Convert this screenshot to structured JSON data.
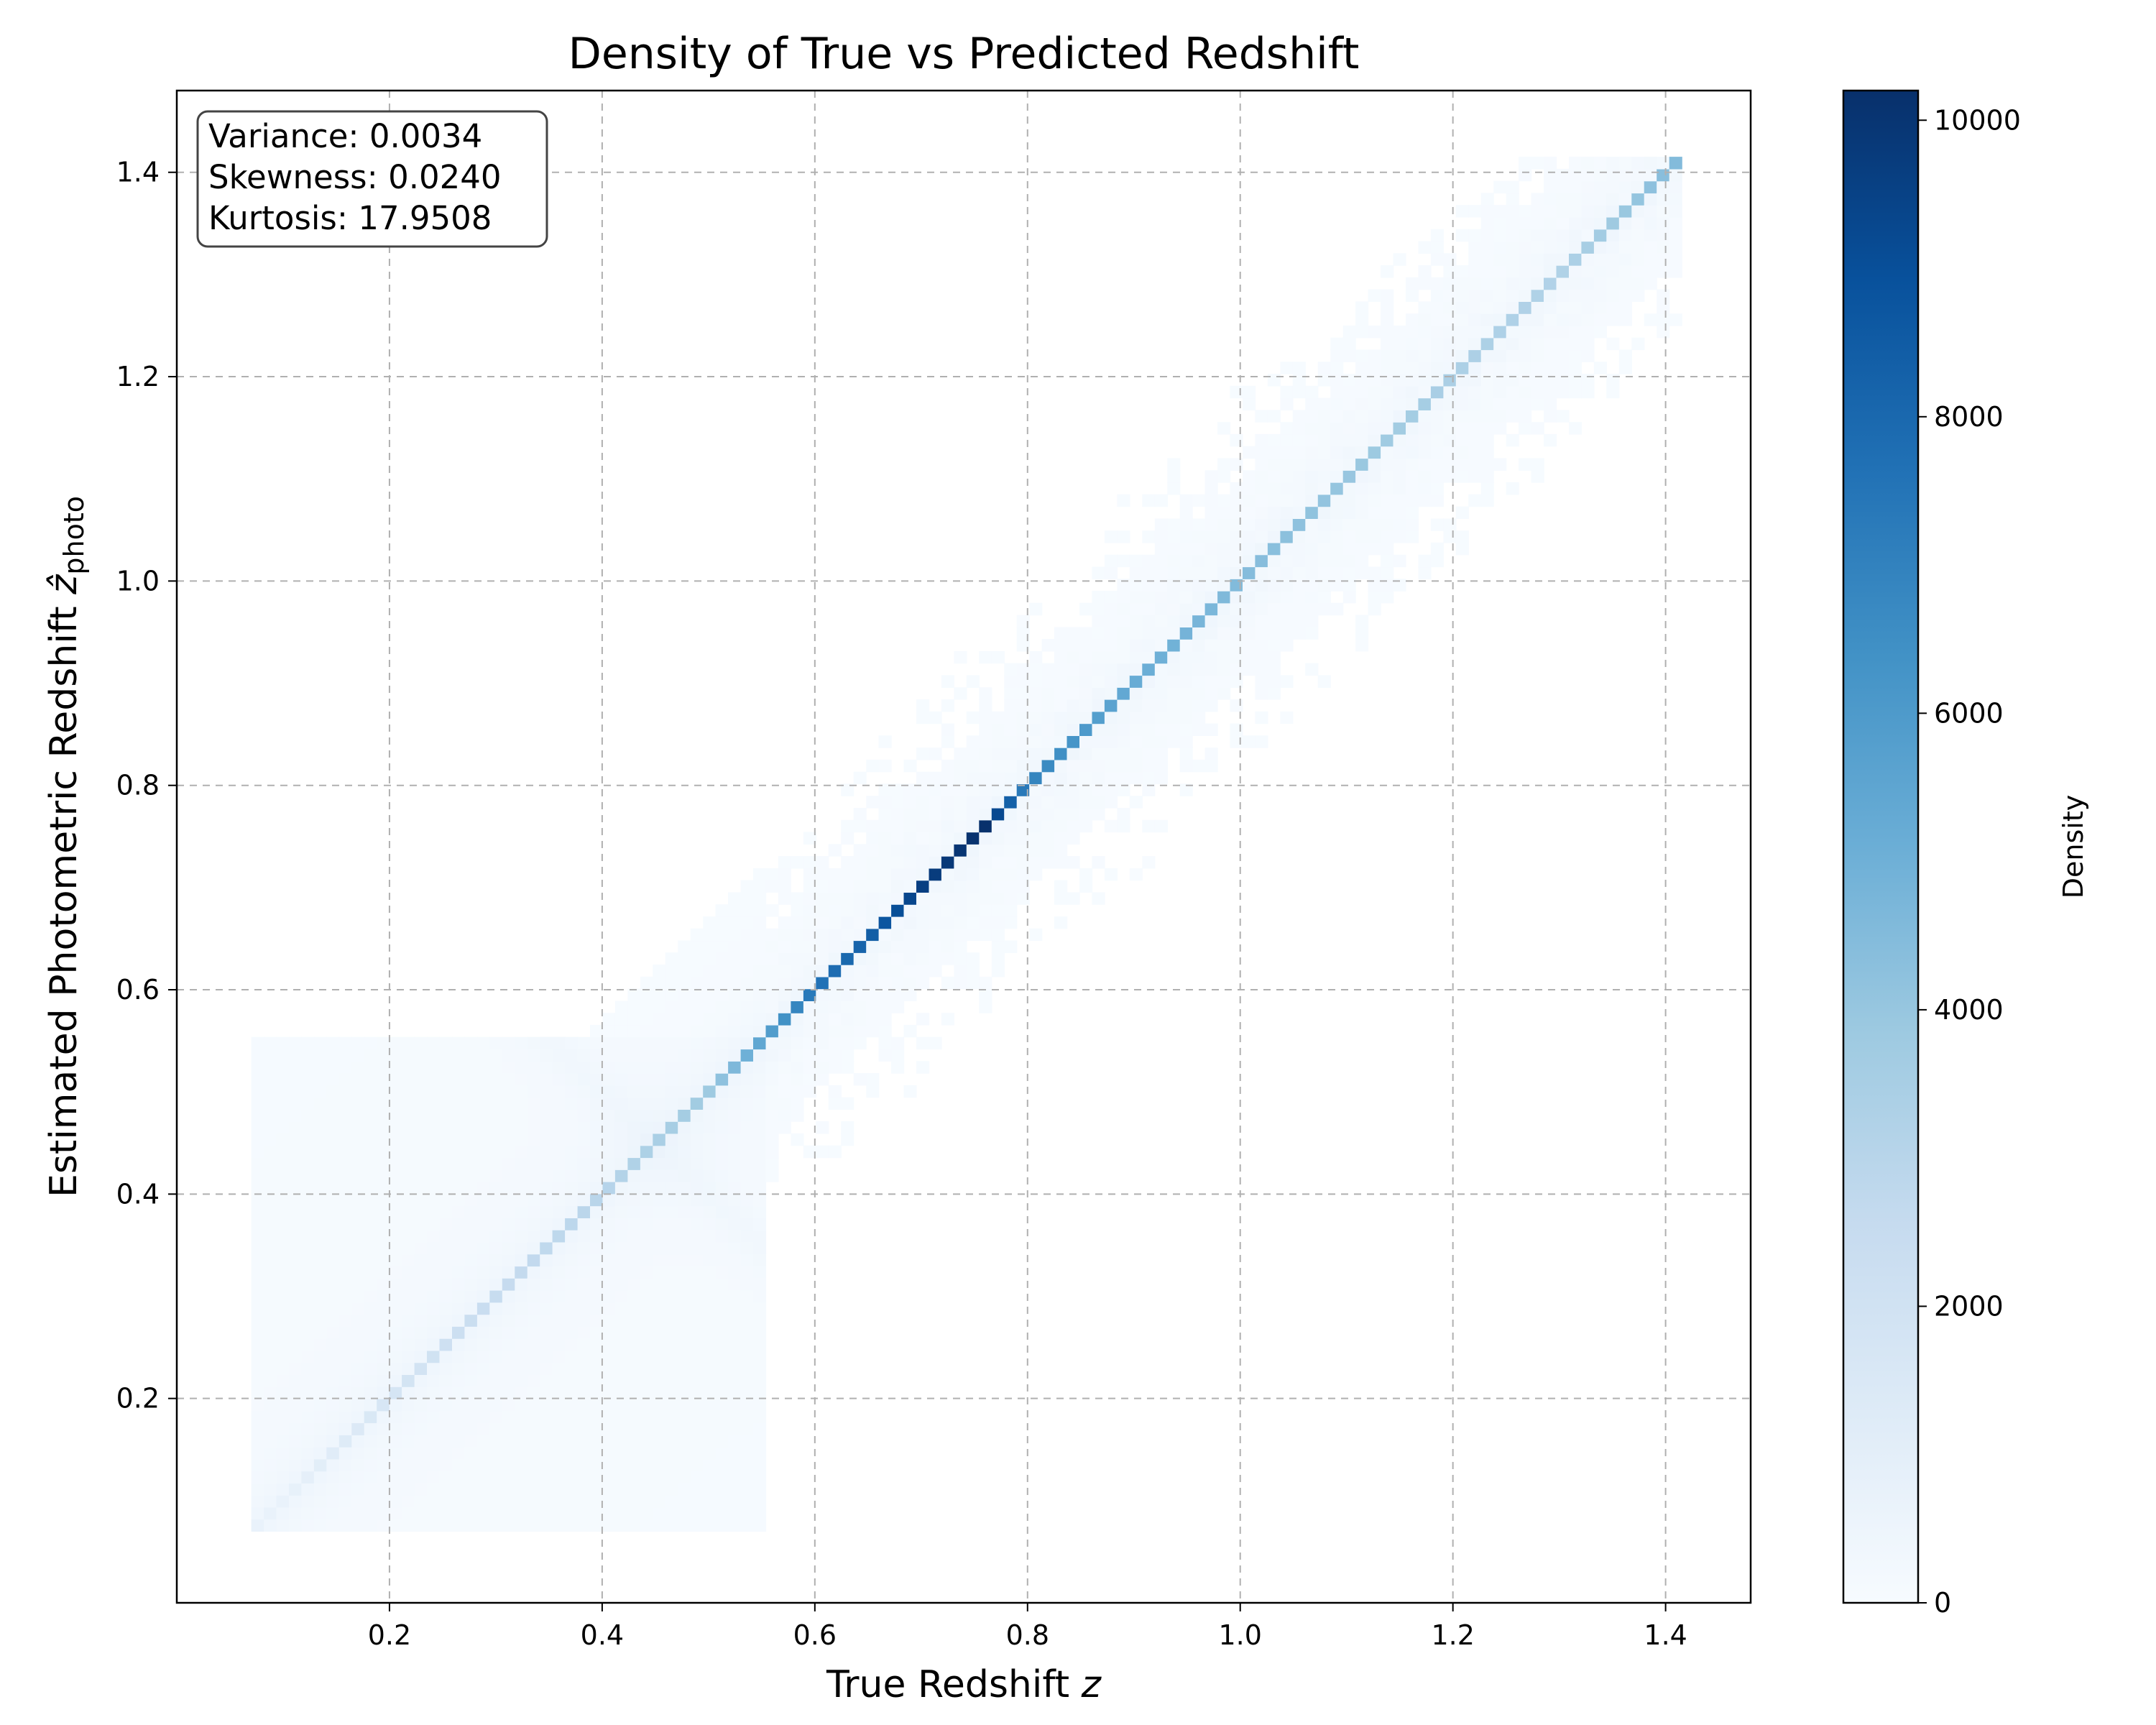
{
  "chart_data": {
    "type": "heatmap",
    "title": "Density of True vs Predicted Redshift",
    "xlabel": {
      "main": "True Redshift ",
      "var": "z"
    },
    "ylabel": {
      "main": "Estimated Photometric Redshift ",
      "var": "ẑ",
      "sub": "photo"
    },
    "xlim": [
      0.0,
      1.48
    ],
    "ylim": [
      0.0,
      1.48
    ],
    "xticks": [
      0.2,
      0.4,
      0.6,
      0.8,
      1.0,
      1.2,
      1.4
    ],
    "yticks": [
      0.2,
      0.4,
      0.6,
      0.8,
      1.0,
      1.2,
      1.4
    ],
    "grid": true,
    "colormap": "Blues",
    "colorbar": {
      "label": "Density",
      "range": [
        0,
        10200
      ],
      "ticks": [
        0,
        2000,
        4000,
        6000,
        8000,
        10000
      ]
    },
    "stats_box": {
      "placement": "top-left",
      "lines": [
        "Variance: 0.0034",
        "Skewness: 0.0240",
        "Kurtosis: 17.9508"
      ]
    },
    "data_range": {
      "x": [
        0.07,
        1.42
      ],
      "y": [
        0.07,
        1.42
      ]
    },
    "diagonal_density": [
      {
        "z": 0.1,
        "density": 700
      },
      {
        "z": 0.2,
        "density": 1700
      },
      {
        "z": 0.3,
        "density": 2500
      },
      {
        "z": 0.4,
        "density": 3000
      },
      {
        "z": 0.5,
        "density": 3800
      },
      {
        "z": 0.55,
        "density": 5500
      },
      {
        "z": 0.6,
        "density": 7500
      },
      {
        "z": 0.65,
        "density": 8300
      },
      {
        "z": 0.7,
        "density": 9600
      },
      {
        "z": 0.76,
        "density": 10200
      },
      {
        "z": 0.8,
        "density": 7000
      },
      {
        "z": 0.9,
        "density": 5200
      },
      {
        "z": 1.0,
        "density": 4500
      },
      {
        "z": 1.1,
        "density": 4000
      },
      {
        "z": 1.2,
        "density": 3400
      },
      {
        "z": 1.3,
        "density": 3200
      },
      {
        "z": 1.41,
        "density": 4500
      }
    ]
  }
}
